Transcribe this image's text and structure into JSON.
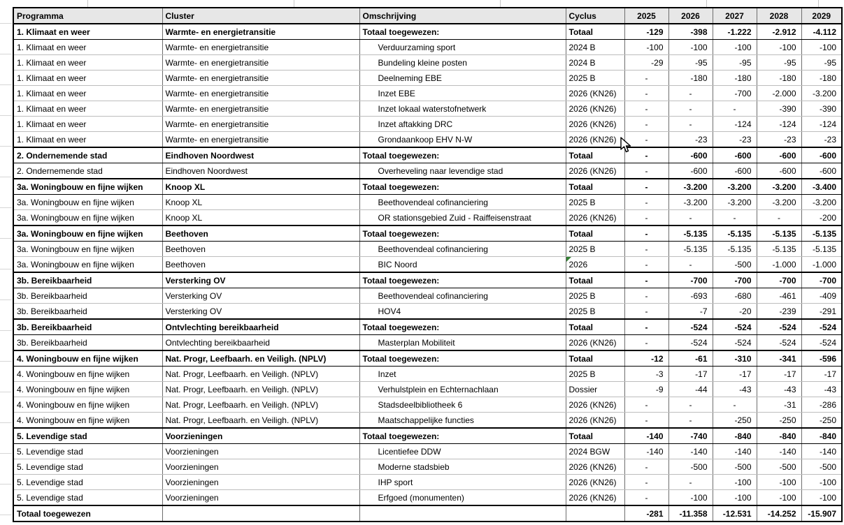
{
  "colors": {
    "header_bg": "#e7e7e7",
    "grid_major": "#000000",
    "grid_minor": "#bdbdbd",
    "flag_triangle": "#338033"
  },
  "table": {
    "columns": [
      "Programma",
      "Cluster",
      "Omschrijving",
      "Cyclus",
      "2025",
      "2026",
      "2027",
      "2028",
      "2029"
    ],
    "rows": [
      {
        "type": "total",
        "programma": "1. Klimaat en weer",
        "cluster": "Warmte- en energietransitie",
        "omschrijving": "Totaal toegewezen:",
        "cyclus": "Totaal",
        "values": [
          "-129",
          "-398",
          "-1.222",
          "-2.912",
          "-4.112"
        ]
      },
      {
        "type": "detail",
        "programma": "1. Klimaat en weer",
        "cluster": "Warmte- en energietransitie",
        "omschrijving": "Verduurzaming sport",
        "cyclus": "2024 B",
        "values": [
          "-100",
          "-100",
          "-100",
          "-100",
          "-100"
        ]
      },
      {
        "type": "detail",
        "programma": "1. Klimaat en weer",
        "cluster": "Warmte- en energietransitie",
        "omschrijving": "Bundeling kleine posten",
        "cyclus": "2024 B",
        "values": [
          "-29",
          "-95",
          "-95",
          "-95",
          "-95"
        ]
      },
      {
        "type": "detail",
        "programma": "1. Klimaat en weer",
        "cluster": "Warmte- en energietransitie",
        "omschrijving": "Deelneming EBE",
        "cyclus": "2025 B",
        "values": [
          "-",
          "-180",
          "-180",
          "-180",
          "-180"
        ]
      },
      {
        "type": "detail",
        "programma": "1. Klimaat en weer",
        "cluster": "Warmte- en energietransitie",
        "omschrijving": "Inzet EBE",
        "cyclus": "2026 (KN26)",
        "values": [
          "-",
          "-",
          "-700",
          "-2.000",
          "-3.200"
        ]
      },
      {
        "type": "detail",
        "programma": "1. Klimaat en weer",
        "cluster": "Warmte- en energietransitie",
        "omschrijving": "Inzet lokaal waterstofnetwerk",
        "cyclus": "2026 (KN26)",
        "values": [
          "-",
          "-",
          "-",
          "-390",
          "-390"
        ]
      },
      {
        "type": "detail",
        "programma": "1. Klimaat en weer",
        "cluster": "Warmte- en energietransitie",
        "omschrijving": "Inzet aftakking DRC",
        "cyclus": "2026 (KN26)",
        "values": [
          "-",
          "-",
          "-124",
          "-124",
          "-124"
        ]
      },
      {
        "type": "detail",
        "programma": "1. Klimaat en weer",
        "cluster": "Warmte- en energietransitie",
        "omschrijving": "Grondaankoop EHV N-W",
        "cyclus": "2026 (KN26)",
        "values": [
          "-",
          "-23",
          "-23",
          "-23",
          "-23"
        ]
      },
      {
        "type": "total",
        "programma": "2. Ondernemende stad",
        "cluster": "Eindhoven Noordwest",
        "omschrijving": "Totaal toegewezen:",
        "cyclus": "Totaal",
        "values": [
          "-",
          "-600",
          "-600",
          "-600",
          "-600"
        ]
      },
      {
        "type": "detail",
        "programma": "2. Ondernemende stad",
        "cluster": "Eindhoven Noordwest",
        "omschrijving": "Overheveling naar levendige stad",
        "cyclus": "2026 (KN26)",
        "values": [
          "-",
          "-600",
          "-600",
          "-600",
          "-600"
        ]
      },
      {
        "type": "total",
        "programma": "3a. Woningbouw en fijne wijken",
        "cluster": "Knoop XL",
        "omschrijving": "Totaal toegewezen:",
        "cyclus": "Totaal",
        "values": [
          "-",
          "-3.200",
          "-3.200",
          "-3.200",
          "-3.400"
        ]
      },
      {
        "type": "detail",
        "programma": "3a. Woningbouw en fijne wijken",
        "cluster": "Knoop XL",
        "omschrijving": "Beethovendeal cofinanciering",
        "cyclus": "2025 B",
        "values": [
          "-",
          "-3.200",
          "-3.200",
          "-3.200",
          "-3.200"
        ]
      },
      {
        "type": "detail",
        "programma": "3a. Woningbouw en fijne wijken",
        "cluster": "Knoop XL",
        "omschrijving": "OR stationsgebied Zuid -  Raiffeisenstraat",
        "cyclus": "2026 (KN26)",
        "values": [
          "-",
          "-",
          "-",
          "-",
          "-200"
        ]
      },
      {
        "type": "total",
        "programma": "3a. Woningbouw en fijne wijken",
        "cluster": "Beethoven",
        "omschrijving": "Totaal toegewezen:",
        "cyclus": "Totaal",
        "values": [
          "-",
          "-5.135",
          "-5.135",
          "-5.135",
          "-5.135"
        ]
      },
      {
        "type": "detail",
        "programma": "3a. Woningbouw en fijne wijken",
        "cluster": "Beethoven",
        "omschrijving": "Beethovendeal cofinanciering",
        "cyclus": "2025 B",
        "values": [
          "-",
          "-5.135",
          "-5.135",
          "-5.135",
          "-5.135"
        ]
      },
      {
        "type": "detail",
        "programma": "3a. Woningbouw en fijne wijken",
        "cluster": "Beethoven",
        "omschrijving": "BIC Noord",
        "cyclus": "2026",
        "flag": true,
        "values": [
          "-",
          "-",
          "-500",
          "-1.000",
          "-1.000"
        ]
      },
      {
        "type": "total",
        "programma": "3b. Bereikbaarheid",
        "cluster": "Versterking OV",
        "omschrijving": "Totaal toegewezen:",
        "cyclus": "Totaal",
        "values": [
          "-",
          "-700",
          "-700",
          "-700",
          "-700"
        ]
      },
      {
        "type": "detail",
        "programma": "3b. Bereikbaarheid",
        "cluster": "Versterking OV",
        "omschrijving": "Beethovendeal cofinanciering",
        "cyclus": "2025 B",
        "values": [
          "-",
          "-693",
          "-680",
          "-461",
          "-409"
        ]
      },
      {
        "type": "detail",
        "programma": "3b. Bereikbaarheid",
        "cluster": "Versterking OV",
        "omschrijving": "HOV4",
        "cyclus": "2025 B",
        "values": [
          "-",
          "-7",
          "-20",
          "-239",
          "-291"
        ]
      },
      {
        "type": "total",
        "programma": "3b. Bereikbaarheid",
        "cluster": "Ontvlechting bereikbaarheid",
        "omschrijving": "Totaal toegewezen:",
        "cyclus": "Totaal",
        "values": [
          "-",
          "-524",
          "-524",
          "-524",
          "-524"
        ]
      },
      {
        "type": "detail",
        "programma": "3b. Bereikbaarheid",
        "cluster": "Ontvlechting bereikbaarheid",
        "omschrijving": "Masterplan Mobiliteit",
        "cyclus": "2026 (KN26)",
        "values": [
          "-",
          "-524",
          "-524",
          "-524",
          "-524"
        ]
      },
      {
        "type": "total",
        "programma": "4. Woningbouw en fijne wijken",
        "cluster": "Nat. Progr, Leefbaarh. en Veiligh. (NPLV)",
        "omschrijving": "Totaal toegewezen:",
        "cyclus": "Totaal",
        "values": [
          "-12",
          "-61",
          "-310",
          "-341",
          "-596"
        ]
      },
      {
        "type": "detail",
        "programma": "4. Woningbouw en fijne wijken",
        "cluster": "Nat. Progr, Leefbaarh. en Veiligh. (NPLV)",
        "omschrijving": "Inzet",
        "cyclus": "2025 B",
        "values": [
          "-3",
          "-17",
          "-17",
          "-17",
          "-17"
        ]
      },
      {
        "type": "detail",
        "programma": "4. Woningbouw en fijne wijken",
        "cluster": "Nat. Progr, Leefbaarh. en Veiligh. (NPLV)",
        "omschrijving": "Verhulstplein en Echternachlaan",
        "cyclus": "Dossier",
        "values": [
          "-9",
          "-44",
          "-43",
          "-43",
          "-43"
        ]
      },
      {
        "type": "detail",
        "programma": "4. Woningbouw en fijne wijken",
        "cluster": "Nat. Progr, Leefbaarh. en Veiligh. (NPLV)",
        "omschrijving": "Stadsdeelbibliotheek 6",
        "cyclus": "2026 (KN26)",
        "values": [
          "-",
          "-",
          "-",
          "-31",
          "-286"
        ]
      },
      {
        "type": "detail",
        "programma": "4. Woningbouw en fijne wijken",
        "cluster": "Nat. Progr, Leefbaarh. en Veiligh. (NPLV)",
        "omschrijving": "Maatschappelijke functies",
        "cyclus": "2026 (KN26)",
        "values": [
          "-",
          "-",
          "-250",
          "-250",
          "-250"
        ]
      },
      {
        "type": "total",
        "programma": "5. Levendige stad",
        "cluster": "Voorzieningen",
        "omschrijving": "Totaal toegewezen:",
        "cyclus": "Totaal",
        "values": [
          "-140",
          "-740",
          "-840",
          "-840",
          "-840"
        ]
      },
      {
        "type": "detail",
        "programma": "5. Levendige stad",
        "cluster": "Voorzieningen",
        "omschrijving": "Licentiefee DDW",
        "cyclus": "2024 BGW",
        "values": [
          "-140",
          "-140",
          "-140",
          "-140",
          "-140"
        ]
      },
      {
        "type": "detail",
        "programma": "5. Levendige stad",
        "cluster": "Voorzieningen",
        "omschrijving": "Moderne stadsbieb",
        "cyclus": "2026 (KN26)",
        "values": [
          "-",
          "-500",
          "-500",
          "-500",
          "-500"
        ]
      },
      {
        "type": "detail",
        "programma": "5. Levendige stad",
        "cluster": "Voorzieningen",
        "omschrijving": "IHP sport",
        "cyclus": "2026 (KN26)",
        "values": [
          "-",
          "-",
          "-100",
          "-100",
          "-100"
        ]
      },
      {
        "type": "detail",
        "programma": "5. Levendige stad",
        "cluster": "Voorzieningen",
        "omschrijving": "Erfgoed (monumenten)",
        "cyclus": "2026 (KN26)",
        "values": [
          "-",
          "-100",
          "-100",
          "-100",
          "-100"
        ]
      },
      {
        "type": "grand",
        "programma": "Totaal toegewezen",
        "cluster": "",
        "omschrijving": "",
        "cyclus": "",
        "values": [
          "-281",
          "-11.358",
          "-12.531",
          "-14.252",
          "-15.907"
        ]
      }
    ]
  }
}
